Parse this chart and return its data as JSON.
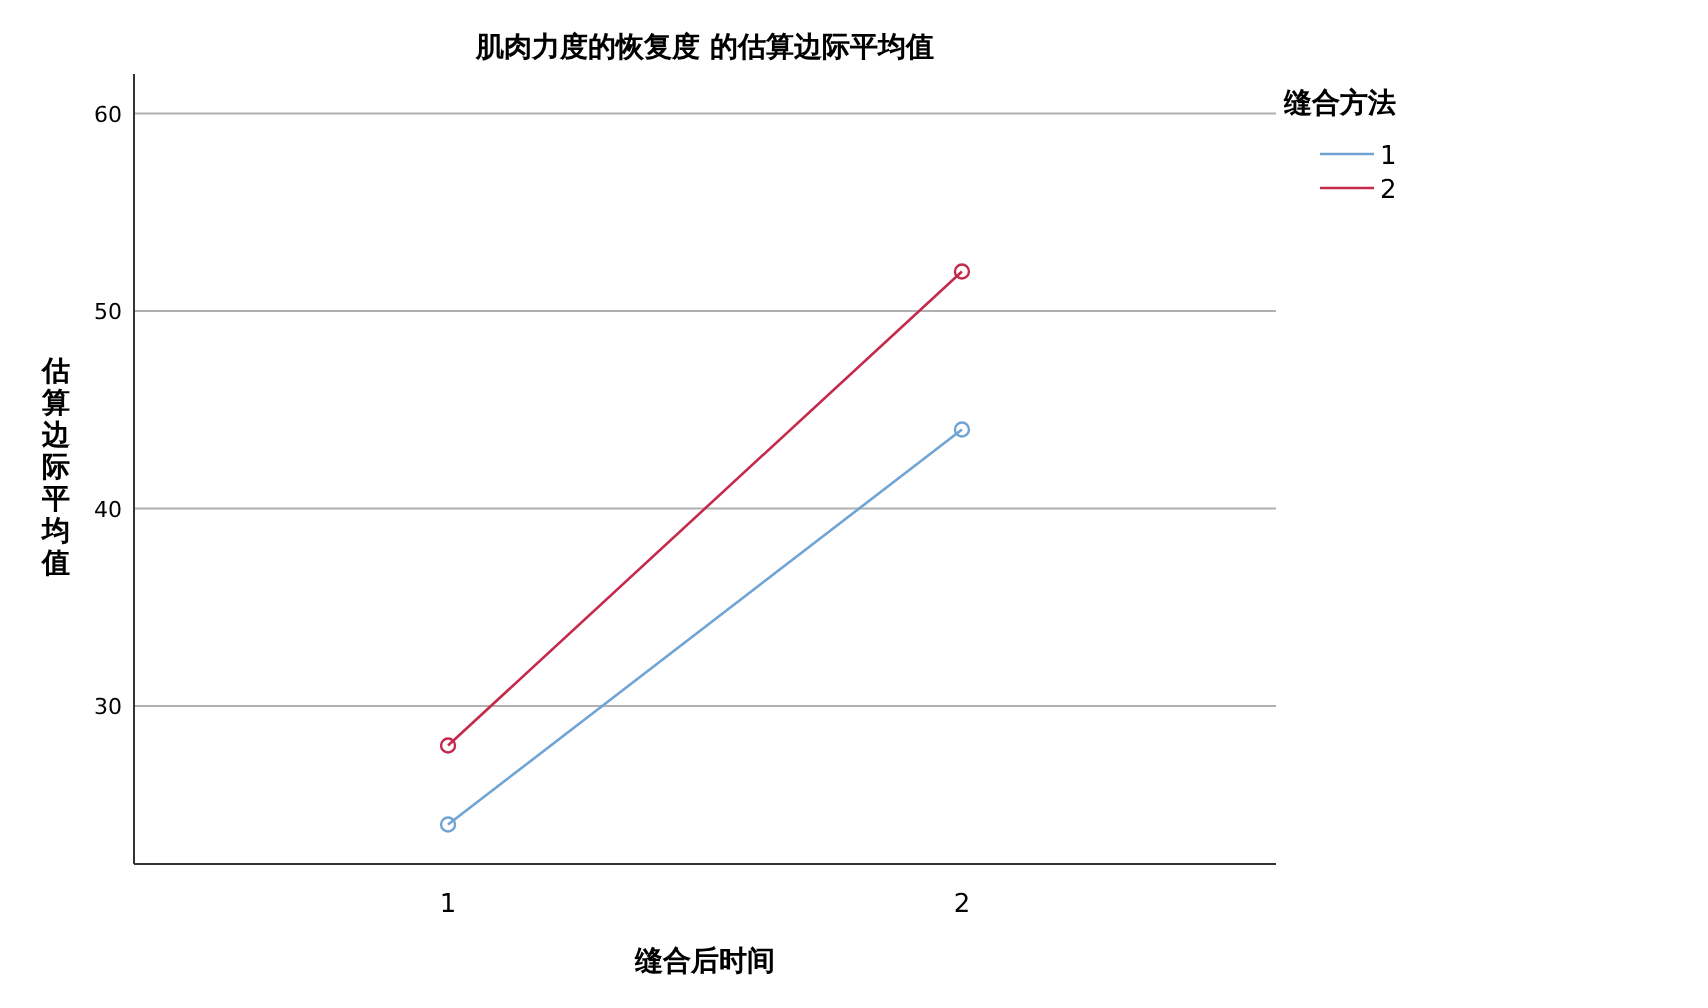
{
  "chart_data": {
    "type": "line",
    "title": "肌肉力度的恢复度 的估算边际平均值",
    "xlabel": "缝合后时间",
    "ylabel": "估算边际平均值",
    "legend_title": "缝合方法",
    "categories": [
      "1",
      "2"
    ],
    "series": [
      {
        "name": "1",
        "color": "#6fa4d4",
        "values": [
          24,
          44
        ]
      },
      {
        "name": "2",
        "color": "#c42a4c",
        "values": [
          28,
          52
        ]
      }
    ],
    "ylim": [
      22,
      62
    ],
    "yticks": [
      30,
      40,
      50,
      60
    ],
    "grid": "y",
    "legend": "top right",
    "marker": "circle",
    "line_style": "solid"
  }
}
